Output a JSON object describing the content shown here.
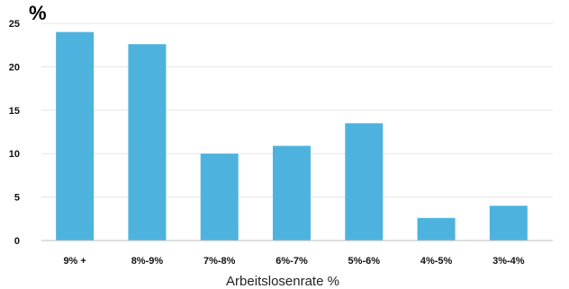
{
  "chart_data": {
    "type": "bar",
    "title": "",
    "ylabel": "%",
    "xlabel": "Arbeitslosenrate  %",
    "categories": [
      "9% +",
      "8%-9%",
      "7%-8%",
      "6%-7%",
      "5%-6%",
      "4%-5%",
      "3%-4%"
    ],
    "values": [
      24,
      22.6,
      10,
      10.9,
      13.5,
      2.6,
      4
    ],
    "ylim": [
      0,
      25
    ],
    "yticks": [
      "0",
      "5",
      "10",
      "15",
      "20",
      "25"
    ],
    "grid": true,
    "bar_color": "#4db3de"
  }
}
